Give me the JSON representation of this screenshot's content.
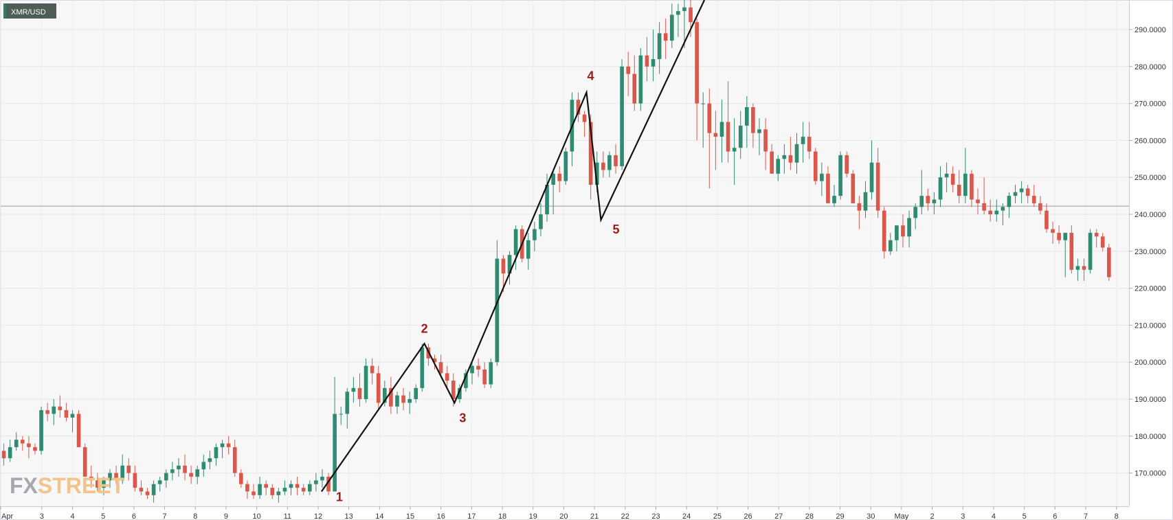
{
  "symbol": "XMR/USD",
  "logo": {
    "part1": "FX",
    "part2": "STREET"
  },
  "chart_data": {
    "type": "candlestick",
    "ylim": [
      161,
      298
    ],
    "y_ticks": [
      {
        "value": 170,
        "label": "170.0000"
      },
      {
        "value": 180,
        "label": "180.0000"
      },
      {
        "value": 190,
        "label": "190.0000"
      },
      {
        "value": 200,
        "label": "200.0000"
      },
      {
        "value": 210,
        "label": "210.0000"
      },
      {
        "value": 220,
        "label": "220.0000"
      },
      {
        "value": 230,
        "label": "230.0000"
      },
      {
        "value": 240,
        "label": "240.0000"
      },
      {
        "value": 250,
        "label": "250.0000"
      },
      {
        "value": 260,
        "label": "260.0000"
      },
      {
        "value": 270,
        "label": "270.0000"
      },
      {
        "value": 280,
        "label": "280.0000"
      },
      {
        "value": 290,
        "label": "290.0000"
      }
    ],
    "x_range": [
      0,
      36.75
    ],
    "x_ticks": [
      {
        "t": 0,
        "label": "Apr"
      },
      {
        "t": 1.34,
        "label": "3"
      },
      {
        "t": 2.34,
        "label": "4"
      },
      {
        "t": 3.34,
        "label": "5"
      },
      {
        "t": 4.34,
        "label": "6"
      },
      {
        "t": 5.34,
        "label": "7"
      },
      {
        "t": 6.34,
        "label": "8"
      },
      {
        "t": 7.34,
        "label": "9"
      },
      {
        "t": 8.34,
        "label": "10"
      },
      {
        "t": 9.34,
        "label": "11"
      },
      {
        "t": 10.34,
        "label": "12"
      },
      {
        "t": 11.34,
        "label": "13"
      },
      {
        "t": 12.34,
        "label": "14"
      },
      {
        "t": 13.34,
        "label": "15"
      },
      {
        "t": 14.34,
        "label": "16"
      },
      {
        "t": 15.34,
        "label": "17"
      },
      {
        "t": 16.34,
        "label": "18"
      },
      {
        "t": 17.34,
        "label": "19"
      },
      {
        "t": 18.34,
        "label": "20"
      },
      {
        "t": 19.34,
        "label": "21"
      },
      {
        "t": 20.34,
        "label": "22"
      },
      {
        "t": 21.34,
        "label": "23"
      },
      {
        "t": 22.34,
        "label": "24"
      },
      {
        "t": 23.34,
        "label": "25"
      },
      {
        "t": 24.34,
        "label": "26"
      },
      {
        "t": 25.34,
        "label": "27"
      },
      {
        "t": 26.34,
        "label": "28"
      },
      {
        "t": 27.34,
        "label": "29"
      },
      {
        "t": 28.34,
        "label": "30"
      },
      {
        "t": 29.34,
        "label": "May"
      },
      {
        "t": 30.34,
        "label": "2"
      },
      {
        "t": 31.34,
        "label": "3"
      },
      {
        "t": 32.34,
        "label": "4"
      },
      {
        "t": 33.34,
        "label": "5"
      },
      {
        "t": 34.34,
        "label": "6"
      },
      {
        "t": 35.34,
        "label": "7"
      },
      {
        "t": 36.34,
        "label": "8"
      }
    ],
    "current_price": 242.2,
    "candles": [
      [
        176,
        178,
        172,
        174
      ],
      [
        174,
        179,
        173,
        177
      ],
      [
        177,
        181,
        176,
        179
      ],
      [
        179,
        180,
        176,
        178
      ],
      [
        178,
        180,
        174,
        177
      ],
      [
        177,
        178,
        175,
        176
      ],
      [
        176,
        188,
        175,
        187
      ],
      [
        187,
        189,
        184,
        186
      ],
      [
        186,
        190,
        183,
        188
      ],
      [
        188,
        191,
        185,
        187
      ],
      [
        187,
        189,
        184,
        185
      ],
      [
        185,
        187,
        181,
        186
      ],
      [
        186,
        187,
        177,
        177
      ],
      [
        177,
        178,
        169,
        169
      ],
      [
        169,
        172,
        166,
        168
      ],
      [
        168,
        170,
        165,
        166
      ],
      [
        166,
        169,
        164,
        168
      ],
      [
        168,
        171,
        166,
        170
      ],
      [
        170,
        172,
        167,
        168
      ],
      [
        168,
        175,
        167,
        172
      ],
      [
        172,
        174,
        168,
        170
      ],
      [
        170,
        172,
        165,
        166
      ],
      [
        166,
        168,
        164,
        165
      ],
      [
        165,
        166,
        163,
        164
      ],
      [
        164,
        168,
        162,
        167
      ],
      [
        167,
        169,
        165,
        168
      ],
      [
        168,
        171,
        166,
        170
      ],
      [
        170,
        173,
        168,
        171
      ],
      [
        171,
        174,
        169,
        172
      ],
      [
        172,
        175,
        168,
        170
      ],
      [
        170,
        172,
        167,
        169
      ],
      [
        169,
        172,
        167,
        171
      ],
      [
        171,
        175,
        169,
        173
      ],
      [
        173,
        176,
        171,
        174
      ],
      [
        174,
        178,
        172,
        177
      ],
      [
        177,
        179,
        174,
        178
      ],
      [
        178,
        180,
        175,
        177
      ],
      [
        177,
        179,
        169,
        170
      ],
      [
        170,
        171,
        166,
        167
      ],
      [
        167,
        168,
        163,
        165
      ],
      [
        165,
        167,
        163,
        164
      ],
      [
        164,
        169,
        163,
        167
      ],
      [
        167,
        168,
        164,
        166
      ],
      [
        166,
        167,
        163,
        164
      ],
      [
        164,
        166,
        162,
        165
      ],
      [
        165,
        168,
        164,
        166
      ],
      [
        166,
        168,
        164,
        167
      ],
      [
        167,
        169,
        164,
        166
      ],
      [
        166,
        167,
        164,
        165
      ],
      [
        165,
        168,
        164,
        167
      ],
      [
        167,
        170,
        165,
        168
      ],
      [
        168,
        171,
        166,
        169
      ],
      [
        169,
        170,
        164,
        165
      ],
      [
        165,
        196,
        165,
        186
      ],
      [
        186,
        188,
        183,
        186
      ],
      [
        186,
        193,
        182,
        192
      ],
      [
        192,
        196,
        189,
        193
      ],
      [
        193,
        197,
        188,
        190
      ],
      [
        190,
        201,
        189,
        199
      ],
      [
        199,
        201,
        194,
        197
      ],
      [
        197,
        199,
        187,
        189
      ],
      [
        189,
        195,
        188,
        193
      ],
      [
        193,
        196,
        186,
        188
      ],
      [
        188,
        192,
        186,
        191
      ],
      [
        191,
        193,
        187,
        189
      ],
      [
        189,
        192,
        186,
        190
      ],
      [
        190,
        194,
        189,
        193
      ],
      [
        193,
        205,
        192,
        204
      ],
      [
        204,
        205,
        199,
        201
      ],
      [
        201,
        202,
        198,
        200
      ],
      [
        200,
        202,
        196,
        197
      ],
      [
        197,
        199,
        193,
        195
      ],
      [
        195,
        197,
        188,
        190
      ],
      [
        190,
        194,
        189,
        193
      ],
      [
        193,
        198,
        192,
        197
      ],
      [
        197,
        200,
        194,
        199
      ],
      [
        199,
        201,
        196,
        198
      ],
      [
        198,
        200,
        193,
        194
      ],
      [
        194,
        201,
        193,
        200
      ],
      [
        200,
        233,
        199,
        228
      ],
      [
        228,
        229,
        219,
        224
      ],
      [
        224,
        230,
        221,
        229
      ],
      [
        229,
        237,
        225,
        236
      ],
      [
        236,
        237,
        227,
        228
      ],
      [
        228,
        235,
        225,
        233
      ],
      [
        233,
        238,
        230,
        236
      ],
      [
        236,
        243,
        234,
        240
      ],
      [
        240,
        251,
        238,
        248
      ],
      [
        248,
        252,
        240,
        251
      ],
      [
        251,
        253,
        246,
        249
      ],
      [
        249,
        258,
        248,
        257
      ],
      [
        257,
        273,
        253,
        271
      ],
      [
        271,
        273,
        265,
        267
      ],
      [
        267,
        268,
        261,
        265
      ],
      [
        265,
        267,
        244,
        248
      ],
      [
        248,
        257,
        246,
        254
      ],
      [
        254,
        257,
        250,
        252
      ],
      [
        252,
        257,
        250,
        256
      ],
      [
        256,
        259,
        251,
        253
      ],
      [
        253,
        282,
        252,
        280
      ],
      [
        280,
        284,
        272,
        278
      ],
      [
        278,
        283,
        268,
        270
      ],
      [
        270,
        285,
        268,
        283
      ],
      [
        283,
        288,
        276,
        280
      ],
      [
        280,
        290,
        276,
        282
      ],
      [
        282,
        292,
        278,
        289
      ],
      [
        289,
        293,
        282,
        287
      ],
      [
        287,
        297,
        285,
        294
      ],
      [
        294,
        297,
        288,
        295
      ],
      [
        295,
        298,
        285,
        296
      ],
      [
        296,
        298,
        288,
        292
      ],
      [
        292,
        293,
        260,
        270
      ],
      [
        270,
        273,
        258,
        270
      ],
      [
        270,
        274,
        247,
        262
      ],
      [
        262,
        268,
        252,
        261
      ],
      [
        261,
        271,
        254,
        265
      ],
      [
        265,
        276,
        254,
        257
      ],
      [
        257,
        266,
        248,
        258
      ],
      [
        258,
        268,
        255,
        264
      ],
      [
        264,
        272,
        258,
        269
      ],
      [
        269,
        270,
        258,
        262
      ],
      [
        262,
        266,
        256,
        263
      ],
      [
        263,
        266,
        252,
        257
      ],
      [
        257,
        259,
        251,
        251
      ],
      [
        251,
        256,
        249,
        255
      ],
      [
        255,
        259,
        251,
        256
      ],
      [
        256,
        261,
        252,
        254
      ],
      [
        254,
        262,
        251,
        259
      ],
      [
        259,
        265,
        254,
        261
      ],
      [
        261,
        265,
        255,
        257
      ],
      [
        257,
        258,
        248,
        249
      ],
      [
        249,
        254,
        245,
        251
      ],
      [
        251,
        253,
        243,
        243
      ],
      [
        243,
        248,
        242,
        245
      ],
      [
        245,
        257,
        244,
        256
      ],
      [
        256,
        257,
        250,
        251
      ],
      [
        251,
        252,
        243,
        243
      ],
      [
        243,
        245,
        236,
        241
      ],
      [
        241,
        249,
        239,
        246
      ],
      [
        246,
        260,
        244,
        254
      ],
      [
        254,
        258,
        239,
        241
      ],
      [
        241,
        242,
        228,
        230
      ],
      [
        230,
        235,
        229,
        233
      ],
      [
        233,
        236,
        230,
        237
      ],
      [
        237,
        240,
        231,
        234
      ],
      [
        234,
        241,
        231,
        239
      ],
      [
        239,
        243,
        236,
        242
      ],
      [
        242,
        252,
        240,
        245
      ],
      [
        245,
        247,
        241,
        243
      ],
      [
        243,
        246,
        240,
        244
      ],
      [
        244,
        253,
        242,
        250
      ],
      [
        250,
        254,
        246,
        251
      ],
      [
        251,
        253,
        246,
        248
      ],
      [
        248,
        252,
        243,
        245
      ],
      [
        245,
        258,
        243,
        251
      ],
      [
        251,
        252,
        242,
        244
      ],
      [
        244,
        247,
        240,
        243
      ],
      [
        243,
        250,
        240,
        241
      ],
      [
        241,
        244,
        238,
        240
      ],
      [
        240,
        244,
        238,
        241
      ],
      [
        241,
        243,
        237,
        242
      ],
      [
        242,
        246,
        239,
        245
      ],
      [
        245,
        248,
        243,
        246
      ],
      [
        246,
        249,
        243,
        247
      ],
      [
        247,
        248,
        243,
        245
      ],
      [
        245,
        248,
        242,
        243
      ],
      [
        243,
        245,
        240,
        241
      ],
      [
        241,
        243,
        235,
        236
      ],
      [
        236,
        238,
        232,
        235
      ],
      [
        235,
        237,
        232,
        233
      ],
      [
        233,
        235,
        223,
        235
      ],
      [
        235,
        237,
        224,
        225
      ],
      [
        225,
        228,
        222,
        226
      ],
      [
        226,
        228,
        222,
        225
      ],
      [
        225,
        236,
        224,
        235
      ],
      [
        235,
        236,
        231,
        234
      ],
      [
        234,
        235,
        230,
        231
      ],
      [
        231,
        232,
        222,
        223
      ]
    ],
    "wave_path": [
      {
        "t": 10.45,
        "y": 165,
        "label": "1"
      },
      {
        "t": 13.8,
        "y": 205,
        "label": "2"
      },
      {
        "t": 14.78,
        "y": 189,
        "label": "3"
      },
      {
        "t": 19.08,
        "y": 273,
        "label": "4"
      },
      {
        "t": 19.55,
        "y": 238.5,
        "label": "5"
      },
      {
        "t": 22.92,
        "y": 298,
        "label": ""
      }
    ]
  }
}
